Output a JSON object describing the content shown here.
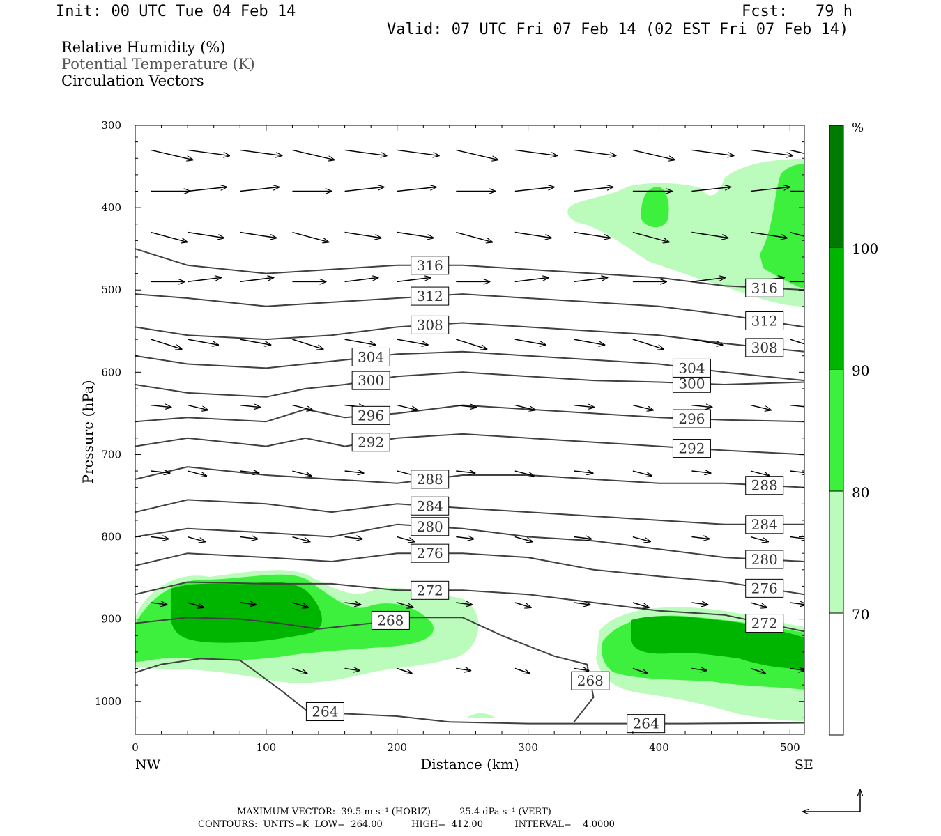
{
  "header": {
    "init": "Init: 00 UTC Tue 04 Feb 14",
    "fcst": "Fcst:   79 h",
    "valid": "Valid: 07 UTC Fri 07 Feb 14 (02 EST Fri 07 Feb 14)"
  },
  "legend": {
    "rh": "Relative Humidity (%)",
    "theta": "Potential Temperature (K)",
    "vectors": "Circulation Vectors"
  },
  "colors": {
    "rh70": "#bbfbbb",
    "rh80": "#3ef03e",
    "rh90": "#00b500",
    "rh100": "#007a00",
    "theta": "#404040",
    "vector": "#000000"
  },
  "colorbar": {
    "unit": "%",
    "labels": [
      "70",
      "80",
      "90",
      "100"
    ]
  },
  "chart_data": {
    "type": "contour",
    "xlabel": "Distance (km)",
    "ylabel": "Pressure (hPa)",
    "xlim": [
      0,
      511
    ],
    "ylim": [
      1040,
      300
    ],
    "xticks": [
      "0",
      "100",
      "200",
      "300",
      "400",
      "500"
    ],
    "yticks": [
      "300",
      "400",
      "500",
      "600",
      "700",
      "800",
      "900",
      "1000"
    ],
    "x_endpoints": {
      "left": "NW",
      "right": "SE"
    },
    "theta_contours": [
      {
        "label": "264",
        "points": [
          [
            0,
            965
          ],
          [
            20,
            955
          ],
          [
            50,
            948
          ],
          [
            80,
            950
          ],
          [
            110,
            985
          ],
          [
            130,
            1010
          ],
          [
            160,
            1015
          ],
          [
            200,
            1018
          ],
          [
            240,
            1025
          ],
          [
            300,
            1027
          ],
          [
            360,
            1027
          ],
          [
            420,
            1027
          ],
          [
            511,
            1026
          ]
        ]
      },
      {
        "label": "268",
        "points": [
          [
            0,
            905
          ],
          [
            40,
            898
          ],
          [
            80,
            900
          ],
          [
            110,
            905
          ],
          [
            140,
            912
          ],
          [
            180,
            905
          ],
          [
            210,
            898
          ],
          [
            250,
            898
          ],
          [
            280,
            920
          ],
          [
            320,
            945
          ],
          [
            345,
            955
          ],
          [
            350,
            995
          ],
          [
            335,
            1025
          ]
        ]
      },
      {
        "label": "272",
        "points": [
          [
            0,
            870
          ],
          [
            40,
            855
          ],
          [
            100,
            857
          ],
          [
            150,
            857
          ],
          [
            200,
            865
          ],
          [
            250,
            865
          ],
          [
            300,
            870
          ],
          [
            350,
            880
          ],
          [
            400,
            890
          ],
          [
            450,
            895
          ],
          [
            511,
            915
          ]
        ]
      },
      {
        "label": "276",
        "points": [
          [
            0,
            835
          ],
          [
            40,
            820
          ],
          [
            100,
            825
          ],
          [
            150,
            830
          ],
          [
            200,
            820
          ],
          [
            250,
            820
          ],
          [
            300,
            825
          ],
          [
            350,
            840
          ],
          [
            400,
            848
          ],
          [
            450,
            855
          ],
          [
            511,
            870
          ]
        ]
      },
      {
        "label": "280",
        "points": [
          [
            0,
            800
          ],
          [
            40,
            790
          ],
          [
            100,
            795
          ],
          [
            150,
            800
          ],
          [
            200,
            785
          ],
          [
            250,
            790
          ],
          [
            300,
            800
          ],
          [
            350,
            805
          ],
          [
            400,
            815
          ],
          [
            450,
            825
          ],
          [
            511,
            830
          ]
        ]
      },
      {
        "label": "284",
        "points": [
          [
            0,
            770
          ],
          [
            40,
            755
          ],
          [
            100,
            760
          ],
          [
            150,
            770
          ],
          [
            200,
            760
          ],
          [
            250,
            765
          ],
          [
            300,
            770
          ],
          [
            350,
            775
          ],
          [
            400,
            780
          ],
          [
            450,
            785
          ],
          [
            511,
            785
          ]
        ]
      },
      {
        "label": "288",
        "points": [
          [
            0,
            730
          ],
          [
            40,
            715
          ],
          [
            100,
            725
          ],
          [
            150,
            730
          ],
          [
            200,
            735
          ],
          [
            250,
            725
          ],
          [
            300,
            725
          ],
          [
            350,
            730
          ],
          [
            400,
            735
          ],
          [
            450,
            735
          ],
          [
            511,
            740
          ]
        ]
      },
      {
        "label": "292",
        "points": [
          [
            0,
            690
          ],
          [
            40,
            680
          ],
          [
            100,
            690
          ],
          [
            130,
            680
          ],
          [
            160,
            690
          ],
          [
            200,
            680
          ],
          [
            250,
            675
          ],
          [
            300,
            680
          ],
          [
            350,
            685
          ],
          [
            400,
            690
          ],
          [
            450,
            695
          ],
          [
            511,
            700
          ]
        ]
      },
      {
        "label": "296",
        "points": [
          [
            0,
            660
          ],
          [
            40,
            655
          ],
          [
            100,
            660
          ],
          [
            130,
            645
          ],
          [
            160,
            655
          ],
          [
            200,
            650
          ],
          [
            250,
            640
          ],
          [
            300,
            645
          ],
          [
            350,
            650
          ],
          [
            400,
            655
          ],
          [
            450,
            658
          ],
          [
            511,
            660
          ]
        ]
      },
      {
        "label": "300",
        "points": [
          [
            0,
            615
          ],
          [
            40,
            625
          ],
          [
            100,
            630
          ],
          [
            130,
            620
          ],
          [
            160,
            615
          ],
          [
            200,
            605
          ],
          [
            250,
            600
          ],
          [
            300,
            605
          ],
          [
            350,
            610
          ],
          [
            400,
            612
          ],
          [
            450,
            615
          ],
          [
            511,
            612
          ]
        ]
      },
      {
        "label": "304",
        "points": [
          [
            0,
            580
          ],
          [
            40,
            590
          ],
          [
            100,
            595
          ],
          [
            130,
            590
          ],
          [
            160,
            585
          ],
          [
            200,
            578
          ],
          [
            250,
            575
          ],
          [
            300,
            580
          ],
          [
            350,
            585
          ],
          [
            400,
            590
          ],
          [
            450,
            600
          ],
          [
            511,
            610
          ]
        ]
      },
      {
        "label": "308",
        "points": [
          [
            0,
            545
          ],
          [
            40,
            555
          ],
          [
            100,
            560
          ],
          [
            150,
            555
          ],
          [
            200,
            545
          ],
          [
            250,
            540
          ],
          [
            300,
            545
          ],
          [
            350,
            550
          ],
          [
            400,
            555
          ],
          [
            450,
            565
          ],
          [
            511,
            575
          ]
        ]
      },
      {
        "label": "312",
        "points": [
          [
            0,
            505
          ],
          [
            40,
            510
          ],
          [
            100,
            520
          ],
          [
            150,
            515
          ],
          [
            200,
            510
          ],
          [
            250,
            505
          ],
          [
            300,
            510
          ],
          [
            350,
            515
          ],
          [
            400,
            520
          ],
          [
            450,
            530
          ],
          [
            511,
            545
          ]
        ]
      },
      {
        "label": "316",
        "points": [
          [
            0,
            450
          ],
          [
            40,
            470
          ],
          [
            100,
            480
          ],
          [
            150,
            475
          ],
          [
            200,
            470
          ],
          [
            250,
            470
          ],
          [
            300,
            475
          ],
          [
            350,
            480
          ],
          [
            400,
            485
          ],
          [
            450,
            495
          ],
          [
            511,
            500
          ]
        ]
      }
    ],
    "rh_fill_levels": [
      70,
      80,
      90,
      100
    ]
  },
  "footer": {
    "max_vector": "MAXIMUM VECTOR:  39.5 m s⁻¹ (HORIZ)          25.4 dPa s⁻¹ (VERT)",
    "contours": "CONTOURS:  UNITS=K  LOW=  264.00          HIGH=  412.00           INTERVAL=    4.0000"
  }
}
